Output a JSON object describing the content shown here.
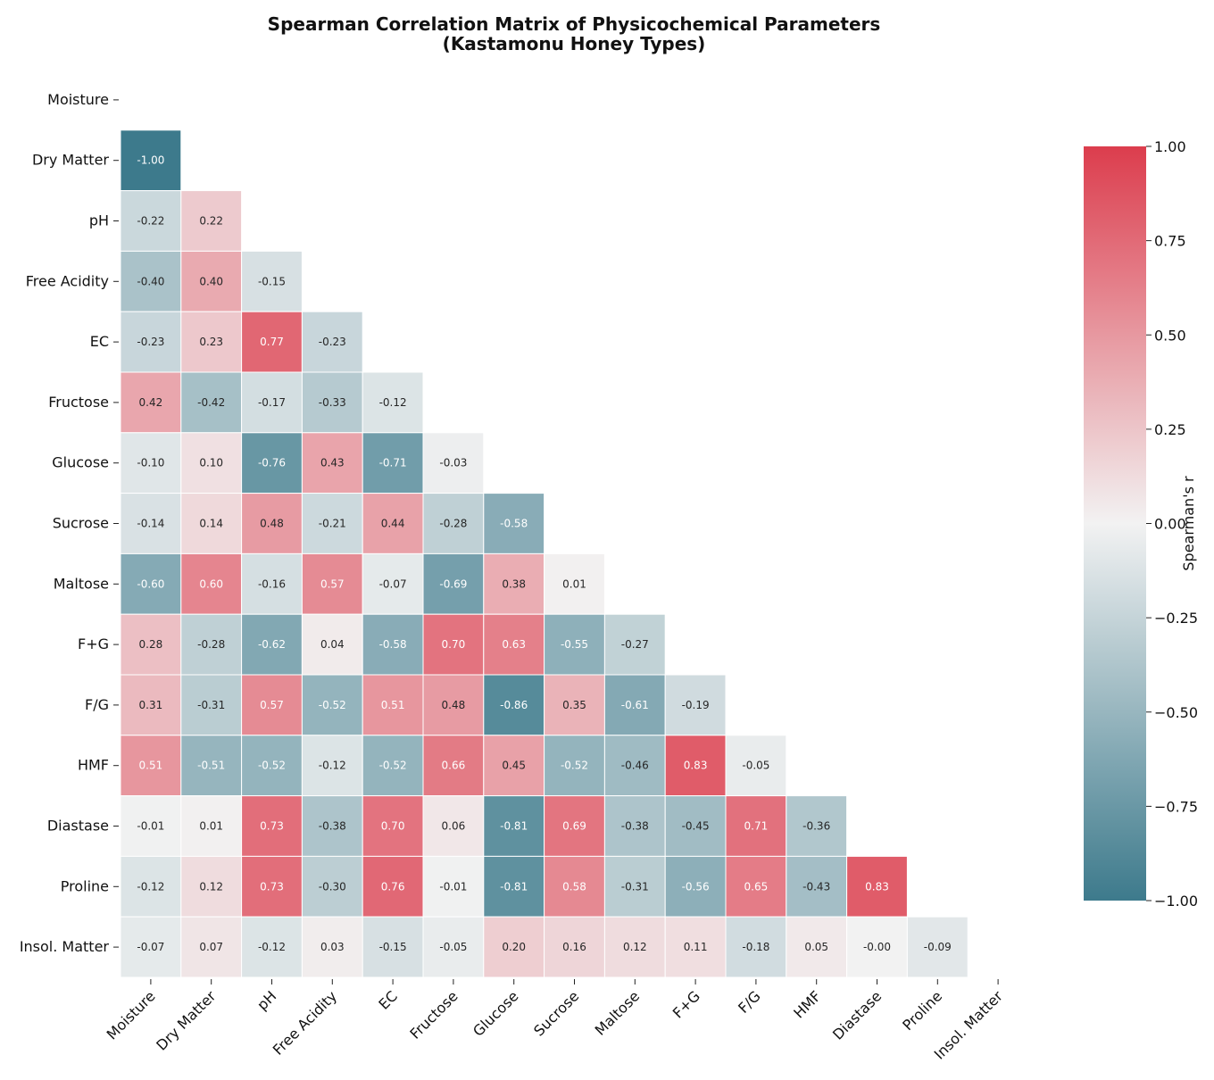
{
  "chart_data": {
    "type": "heatmap",
    "title_line1": "Spearman Correlation Matrix of Physicochemical Parameters",
    "title_line2": "(Kastamonu Honey Types)",
    "labels": [
      "Moisture",
      "Dry Matter",
      "pH",
      "Free Acidity",
      "EC",
      "Fructose",
      "Glucose",
      "Sucrose",
      "Maltose",
      "F+G",
      "F/G",
      "HMF",
      "Diastase",
      "Proline",
      "Insol. Matter"
    ],
    "lower_triangle": [
      [],
      [
        "-1.00"
      ],
      [
        "-0.22",
        "0.22"
      ],
      [
        "-0.40",
        "0.40",
        "-0.15"
      ],
      [
        "-0.23",
        "0.23",
        "0.77",
        "-0.23"
      ],
      [
        "0.42",
        "-0.42",
        "-0.17",
        "-0.33",
        "-0.12"
      ],
      [
        "-0.10",
        "0.10",
        "-0.76",
        "0.43",
        "-0.71",
        "-0.03"
      ],
      [
        "-0.14",
        "0.14",
        "0.48",
        "-0.21",
        "0.44",
        "-0.28",
        "-0.58"
      ],
      [
        "-0.60",
        "0.60",
        "-0.16",
        "0.57",
        "-0.07",
        "-0.69",
        "0.38",
        "0.01"
      ],
      [
        "0.28",
        "-0.28",
        "-0.62",
        "0.04",
        "-0.58",
        "0.70",
        "0.63",
        "-0.55",
        "-0.27"
      ],
      [
        "0.31",
        "-0.31",
        "0.57",
        "-0.52",
        "0.51",
        "0.48",
        "-0.86",
        "0.35",
        "-0.61",
        "-0.19"
      ],
      [
        "0.51",
        "-0.51",
        "-0.52",
        "-0.12",
        "-0.52",
        "0.66",
        "0.45",
        "-0.52",
        "-0.46",
        "0.83",
        "-0.05"
      ],
      [
        "-0.01",
        "0.01",
        "0.73",
        "-0.38",
        "0.70",
        "0.06",
        "-0.81",
        "0.69",
        "-0.38",
        "-0.45",
        "0.71",
        "-0.36"
      ],
      [
        "-0.12",
        "0.12",
        "0.73",
        "-0.30",
        "0.76",
        "-0.01",
        "-0.81",
        "0.58",
        "-0.31",
        "-0.56",
        "0.65",
        "-0.43",
        "0.83"
      ],
      [
        "-0.07",
        "0.07",
        "-0.12",
        "0.03",
        "-0.15",
        "-0.05",
        "0.20",
        "0.16",
        "0.12",
        "0.11",
        "-0.18",
        "0.05",
        "-0.00",
        "-0.09"
      ]
    ],
    "colorbar": {
      "label": "Spearman's r",
      "range": [
        -1,
        1
      ],
      "ticks": [
        "1.00",
        "0.75",
        "0.50",
        "0.25",
        "0.00",
        "−0.25",
        "−0.50",
        "−0.75",
        "−1.00"
      ]
    },
    "colormap": {
      "negative": "#3d7a8c",
      "neutral": "#f2f2f2",
      "positive": "#dc3d4d"
    }
  }
}
